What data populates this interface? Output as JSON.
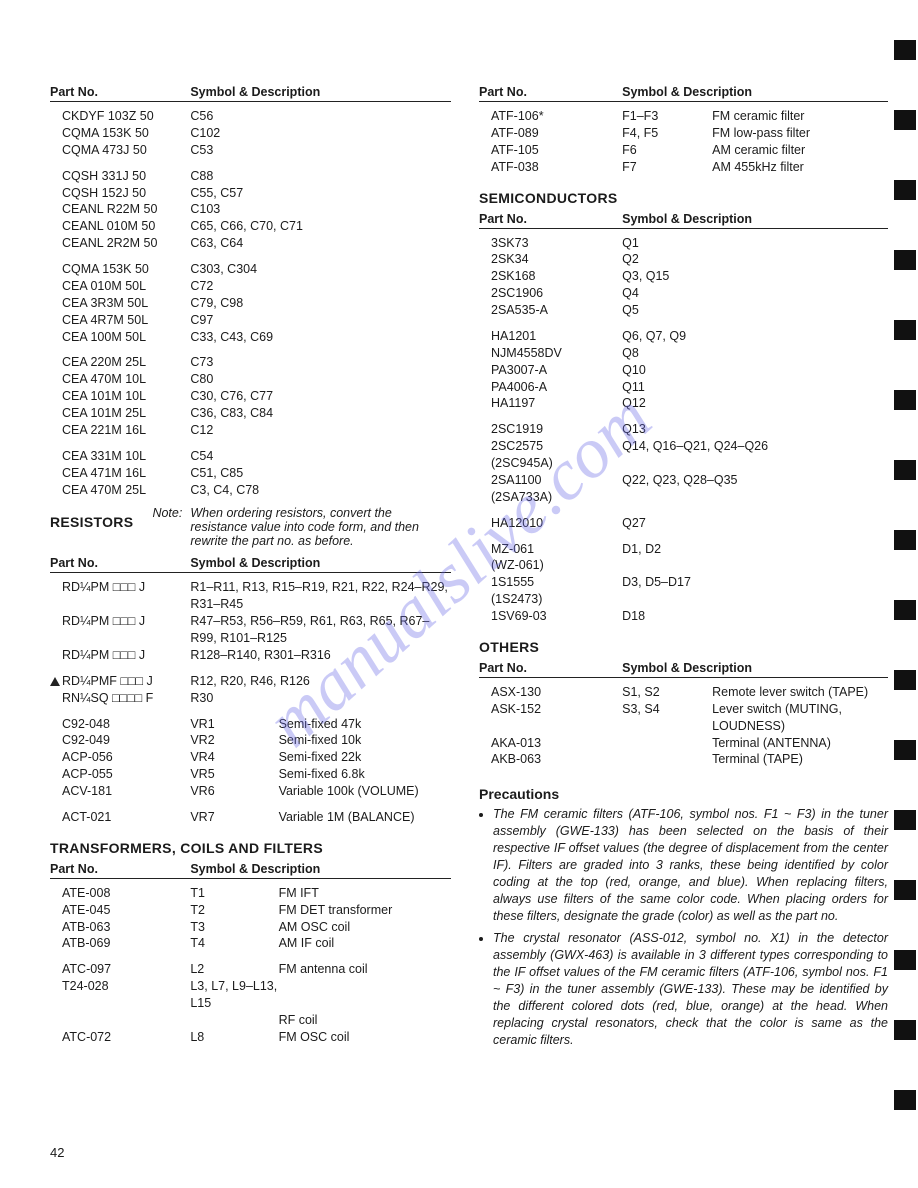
{
  "page_number": "42",
  "watermark": "manualslive.com",
  "headers": {
    "part": "Part No.",
    "sym": "Symbol & Description"
  },
  "left": {
    "caps": [
      {
        "p": "CKDYF 103Z 50",
        "s": "C56"
      },
      {
        "p": "CQMA 153K 50",
        "s": "C102"
      },
      {
        "p": "CQMA 473J 50",
        "s": "C53"
      },
      {
        "gap": true
      },
      {
        "p": "CQSH 331J 50",
        "s": "C88"
      },
      {
        "p": "CQSH 152J 50",
        "s": "C55, C57"
      },
      {
        "p": "CEANL R22M 50",
        "s": "C103"
      },
      {
        "p": "CEANL 010M 50",
        "s": "C65, C66, C70, C71"
      },
      {
        "p": "CEANL 2R2M 50",
        "s": "C63, C64"
      },
      {
        "gap": true
      },
      {
        "p": "CQMA 153K 50",
        "s": "C303, C304"
      },
      {
        "p": "CEA 010M 50L",
        "s": "C72"
      },
      {
        "p": "CEA 3R3M 50L",
        "s": "C79, C98"
      },
      {
        "p": "CEA 4R7M 50L",
        "s": "C97"
      },
      {
        "p": "CEA 100M 50L",
        "s": "C33, C43, C69"
      },
      {
        "gap": true
      },
      {
        "p": "CEA 220M 25L",
        "s": "C73"
      },
      {
        "p": "CEA 470M 10L",
        "s": "C80"
      },
      {
        "p": "CEA 101M 10L",
        "s": "C30, C76, C77"
      },
      {
        "p": "CEA 101M 25L",
        "s": "C36, C83, C84"
      },
      {
        "p": "CEA 221M 16L",
        "s": "C12"
      },
      {
        "gap": true
      },
      {
        "p": "CEA 331M 10L",
        "s": "C54"
      },
      {
        "p": "CEA 471M 16L",
        "s": "C51, C85"
      },
      {
        "p": "CEA 470M 25L",
        "s": "C3, C4, C78"
      }
    ],
    "note_label": "Note:",
    "note_text": "When ordering resistors, convert the resistance value into code form, and then rewrite the part no. as before.",
    "resistors_title": "RESISTORS",
    "resistors": [
      {
        "p": "RD¼PM □□□ J",
        "s": "R1–R11, R13, R15–R19, R21, R22, R24–R29, R31–R45"
      },
      {
        "p": "RD¼PM □□□ J",
        "s": "R47–R53, R56–R59, R61, R63, R65, R67–R99, R101–R125"
      },
      {
        "p": "RD¼PM □□□ J",
        "s": "R128–R140, R301–R316"
      },
      {
        "gap": true
      },
      {
        "p": "RD¼PMF □□□ J",
        "s": "R12, R20, R46, R126",
        "warn": true
      },
      {
        "p": "RN¼SQ □□□□ F",
        "s": "R30"
      },
      {
        "gap": true
      },
      {
        "p": "C92-048",
        "s": "VR1",
        "d": "Semi-fixed 47k"
      },
      {
        "p": "C92-049",
        "s": "VR2",
        "d": "Semi-fixed 10k"
      },
      {
        "p": "ACP-056",
        "s": "VR4",
        "d": "Semi-fixed 22k"
      },
      {
        "p": "ACP-055",
        "s": "VR5",
        "d": "Semi-fixed 6.8k"
      },
      {
        "p": "ACV-181",
        "s": "VR6",
        "d": "Variable 100k (VOLUME)"
      },
      {
        "gap": true
      },
      {
        "p": "ACT-021",
        "s": "VR7",
        "d": "Variable 1M (BALANCE)"
      }
    ],
    "transformers_title": "TRANSFORMERS, COILS AND FILTERS",
    "transformers": [
      {
        "p": "ATE-008",
        "s": "T1",
        "d": "FM IFT"
      },
      {
        "p": "ATE-045",
        "s": "T2",
        "d": "FM DET transformer"
      },
      {
        "p": "ATB-063",
        "s": "T3",
        "d": "AM OSC coil"
      },
      {
        "p": "ATB-069",
        "s": "T4",
        "d": "AM IF coil"
      },
      {
        "gap": true
      },
      {
        "p": "ATC-097",
        "s": "L2",
        "d": "FM antenna coil"
      },
      {
        "p": "T24-028",
        "s": "L3, L7, L9–L13, L15"
      },
      {
        "p": "",
        "s": "",
        "d": "RF coil"
      },
      {
        "p": "ATC-072",
        "s": "L8",
        "d": "FM OSC coil"
      }
    ]
  },
  "right": {
    "filters": [
      {
        "p": "ATF-106*",
        "s": "F1–F3",
        "d": "FM ceramic filter"
      },
      {
        "p": "ATF-089",
        "s": "F4, F5",
        "d": "FM low-pass filter"
      },
      {
        "p": "ATF-105",
        "s": "F6",
        "d": "AM ceramic filter"
      },
      {
        "p": "ATF-038",
        "s": "F7",
        "d": "AM 455kHz filter"
      }
    ],
    "semi_title": "SEMICONDUCTORS",
    "semi": [
      {
        "p": "3SK73",
        "s": "Q1"
      },
      {
        "p": "2SK34",
        "s": "Q2"
      },
      {
        "p": "2SK168",
        "s": "Q3, Q15"
      },
      {
        "p": "2SC1906",
        "s": "Q4"
      },
      {
        "p": "2SA535-A",
        "s": "Q5"
      },
      {
        "gap": true
      },
      {
        "p": "HA1201",
        "s": "Q6, Q7, Q9"
      },
      {
        "p": "NJM4558DV",
        "s": "Q8"
      },
      {
        "p": "PA3007-A",
        "s": "Q10"
      },
      {
        "p": "PA4006-A",
        "s": "Q11"
      },
      {
        "p": "HA1197",
        "s": "Q12"
      },
      {
        "gap": true
      },
      {
        "p": "2SC1919",
        "s": "Q13"
      },
      {
        "p": "2SC2575",
        "s": "Q14, Q16–Q21, Q24–Q26"
      },
      {
        "p": "(2SC945A)",
        "s": ""
      },
      {
        "p": "2SA1100",
        "s": "Q22, Q23, Q28–Q35"
      },
      {
        "p": "(2SA733A)",
        "s": ""
      },
      {
        "gap": true
      },
      {
        "p": "HA12010",
        "s": "Q27"
      },
      {
        "gap": true
      },
      {
        "p": "MZ-061",
        "s": "D1, D2"
      },
      {
        "p": "(WZ-061)",
        "s": ""
      },
      {
        "p": "1S1555",
        "s": "D3, D5–D17"
      },
      {
        "p": "(1S2473)",
        "s": ""
      },
      {
        "p": "1SV69-03",
        "s": "D18"
      }
    ],
    "others_title": "OTHERS",
    "others": [
      {
        "p": "ASX-130",
        "s": "S1, S2",
        "d": "Remote lever switch (TAPE)"
      },
      {
        "p": "ASK-152",
        "s": "S3, S4",
        "d": "Lever switch (MUTING, LOUDNESS)"
      },
      {
        "p": "AKA-013",
        "s": "",
        "d": "Terminal (ANTENNA)"
      },
      {
        "p": "AKB-063",
        "s": "",
        "d": "Terminal (TAPE)"
      }
    ],
    "prec_title": "Precautions",
    "prec": [
      "The FM ceramic filters (ATF-106, symbol nos. F1 ~ F3) in the tuner assembly (GWE-133) has been selected on the basis of their respective IF offset values (the degree of displacement from the center IF). Filters are graded into 3 ranks, these being identified by color coding at the top (red, orange, and blue). When replacing filters, always use filters of the same color code. When placing orders for these filters, designate the grade (color) as well as the part no.",
      "The crystal resonator (ASS-012, symbol no. X1) in the detector assembly (GWX-463) is available in 3 different types corresponding to the IF offset values of the FM ceramic filters (ATF-106, symbol nos. F1 ~ F3) in the tuner assembly (GWE-133). These may be identified by the different colored dots (red, blue, orange) at the head. When replacing crystal resonators, check that the color is same as the ceramic filters."
    ]
  }
}
